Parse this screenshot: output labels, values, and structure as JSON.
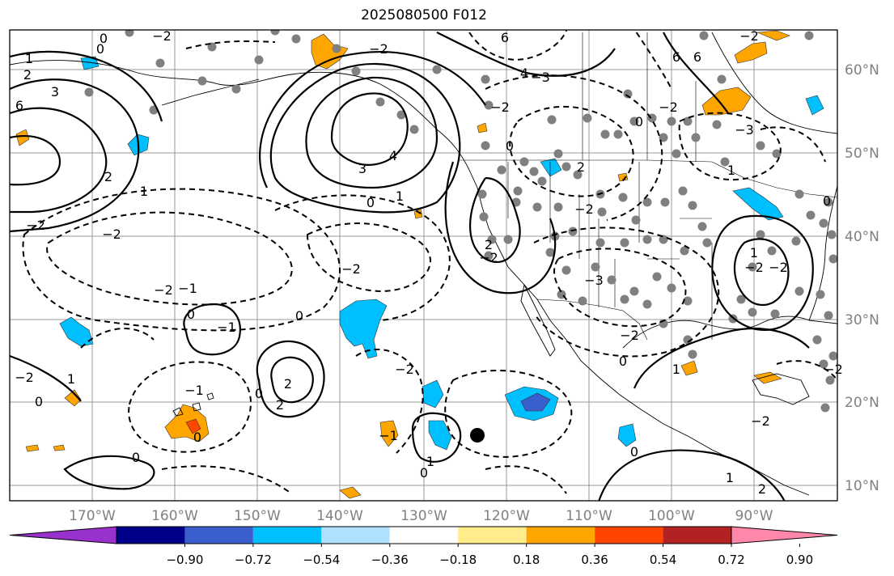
{
  "title": "2025080500 F012",
  "latitude_labels": [
    "60°N",
    "50°N",
    "40°N",
    "30°N",
    "20°N",
    "10°N"
  ],
  "longitude_labels": [
    "170°W",
    "160°W",
    "150°W",
    "140°W",
    "130°W",
    "120°W",
    "110°W",
    "100°W",
    "90°W"
  ],
  "colorbar": {
    "tick_labels": [
      "−0.90",
      "−0.72",
      "−0.54",
      "−0.36",
      "−0.18",
      "0.18",
      "0.36",
      "0.54",
      "0.72",
      "0.90"
    ],
    "colors": [
      "#9932CC",
      "#00008B",
      "#3A5FCD",
      "#00BFFF",
      "#B0E2FF",
      "#FFFFFF",
      "#FFEC8B",
      "#FFA500",
      "#FF4500",
      "#B22222",
      "#FF88AA"
    ]
  },
  "contour_labels": [
    "0",
    "1",
    "2",
    "3",
    "4",
    "6",
    "−1",
    "−2",
    "−3"
  ],
  "colors": {
    "grid": "#999999",
    "contour": "#000000",
    "station_dot": "#808080"
  }
}
